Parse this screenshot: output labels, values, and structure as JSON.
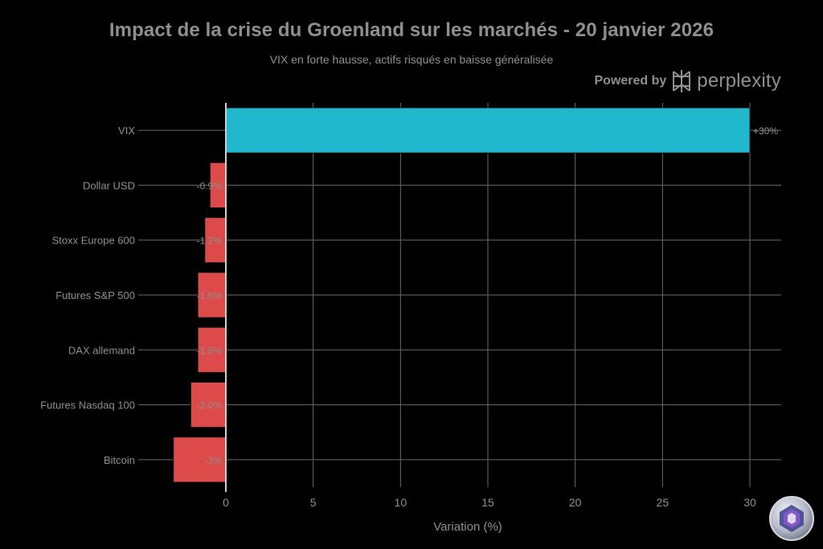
{
  "chart_data": {
    "type": "bar",
    "orientation": "horizontal",
    "title": "Impact de la crise du Groenland sur les marchés - 20 janvier 2026",
    "subtitle": "VIX en forte hausse, actifs risqués en baisse généralisée",
    "xlabel": "Variation (%)",
    "ylabel": "",
    "xlim": [
      -3,
      30
    ],
    "x_ticks": [
      "0",
      "5",
      "10",
      "15",
      "20",
      "25",
      "30"
    ],
    "x_tick_values": [
      0,
      5,
      10,
      15,
      20,
      25,
      30
    ],
    "grid": true,
    "categories": [
      "VIX",
      "Dollar USD",
      "Stoxx Europe 600",
      "Futures S&P 500",
      "DAX allemand",
      "Futures Nasdaq 100",
      "Bitcoin"
    ],
    "values": [
      30,
      -0.9,
      -1.2,
      -1.6,
      -1.6,
      -2.0,
      -3
    ],
    "value_labels": [
      "+30%",
      "-0.9%",
      "-1.2%",
      "-1.6%",
      "-1.6%",
      "-2.0%",
      "-3%"
    ],
    "colors": {
      "positive": "#20b8cd",
      "negative": "#dc4a4a",
      "grid": "#6a6a6a",
      "text": "#8f8f8f",
      "background": "#000000"
    }
  },
  "branding": {
    "powered_label": "Powered by",
    "brand_name": "perplexity",
    "logo_icon": "perplexity-logo-icon",
    "badge_icon": "watermark-badge-icon"
  }
}
